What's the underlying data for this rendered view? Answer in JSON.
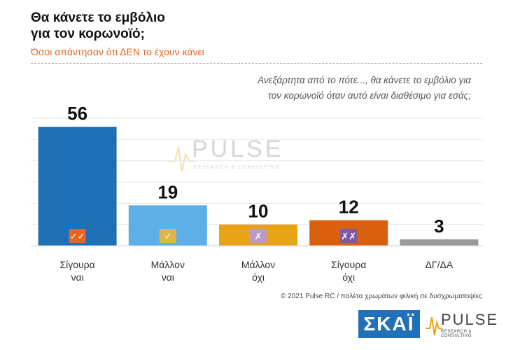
{
  "header": {
    "title_line1": "Θα κάνετε το εμβόλιο",
    "title_line2": "για τον κορωνοϊό;",
    "subtitle": "Όσοι απάντησαν ότι ΔΕΝ το έχουν κάνει",
    "question_line1": "Ανεξάρτητα από το πότε..., θα κάνετε το εμβόλιο για",
    "question_line2": "τον κορωνοϊό όταν αυτό είναι διαθέσιμο για εσάς;"
  },
  "chart_data": {
    "type": "bar",
    "categories": [
      [
        "Σίγουρα",
        "ναι"
      ],
      [
        "Μάλλον",
        "ναι"
      ],
      [
        "Μάλλον",
        "όχι"
      ],
      [
        "Σίγουρα",
        "όχι"
      ],
      [
        "ΔΓ/ΔΑ"
      ]
    ],
    "values": [
      56,
      19,
      10,
      12,
      3
    ],
    "data_labels": [
      "56",
      "19",
      "10",
      "12",
      "3"
    ],
    "colors": [
      "#1f6fb5",
      "#5eaee8",
      "#e8a317",
      "#d9600f",
      "#9a9a9a"
    ],
    "badges": [
      "✓✓",
      "✓",
      "✗",
      "✗✗",
      ""
    ],
    "badge_colors": [
      "#e8651e",
      "#e0b548",
      "#b99ac9",
      "#7d5aa6",
      ""
    ],
    "ylim": [
      0,
      60
    ],
    "grid": true
  },
  "footer": {
    "note": "© 2021 Pulse RC  /  παλέτα χρωμάτων φιλική σε δυσχρωματοψίες",
    "skai_logo": "ΣΚΑΪ",
    "pulse_logo": "PULSE",
    "pulse_sub": "RESEARCH & CONSULTING"
  },
  "watermark": {
    "text": "PULSE",
    "sub": "RESEARCH & CONSULTING"
  }
}
